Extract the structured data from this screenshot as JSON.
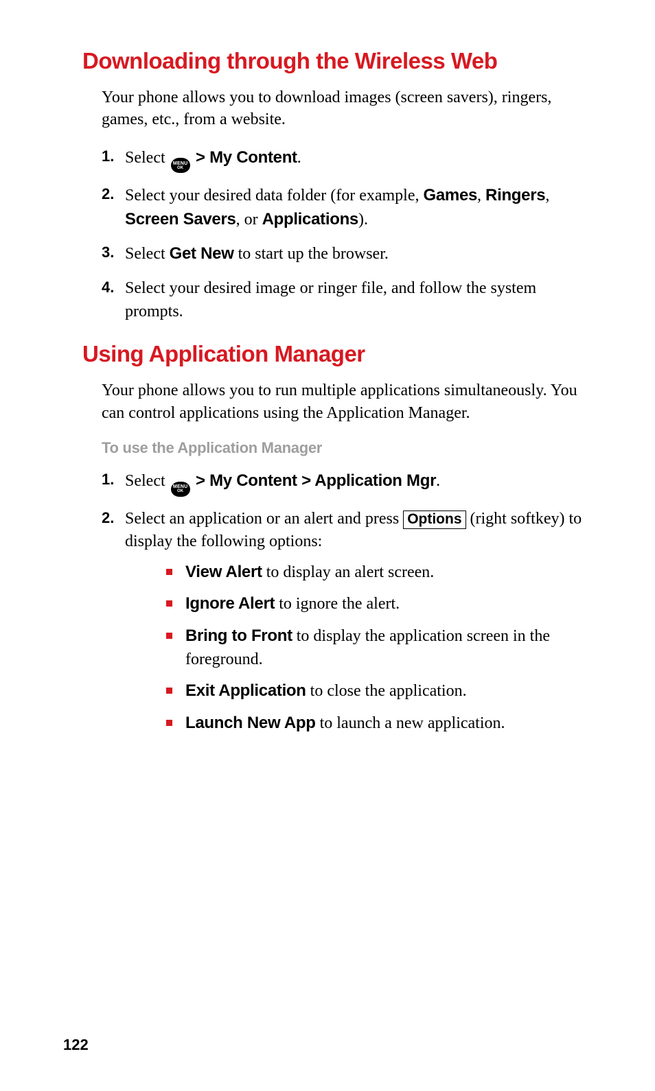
{
  "colors": {
    "heading_red": "#d71921",
    "bullet_red": "#d71921",
    "subheading_gray": "#9e9e9e",
    "text_black": "#000000",
    "background": "#ffffff"
  },
  "typography": {
    "heading_family": "Arial Black / Helvetica condensed heavy",
    "heading_size_pt": 25,
    "body_family": "Georgia / serif",
    "body_size_pt": 18,
    "sans_bold_family": "Arial / Helvetica bold"
  },
  "section1": {
    "heading": "Downloading through the Wireless Web",
    "intro": "Your phone allows you to download images (screen savers), ringers, games, etc., from a website.",
    "steps": [
      {
        "num": "1.",
        "pre": "Select ",
        "icon": "menu-ok-icon",
        "icon_text_top": "MENU",
        "icon_text_bottom": "OK",
        "after_icon": " > ",
        "bold1": "My Content",
        "post": "."
      },
      {
        "num": "2.",
        "pre": "Select your desired data folder (for example, ",
        "bold1": "Games",
        "mid1": ", ",
        "bold2": "Ringers",
        "mid2": ", ",
        "bold3": "Screen Savers",
        "mid3": ", or ",
        "bold4": "Applications",
        "post": ")."
      },
      {
        "num": "3.",
        "pre": "Select ",
        "bold1": "Get New",
        "post": " to start up the browser."
      },
      {
        "num": "4.",
        "pre": "Select your desired image or ringer file, and follow the system prompts."
      }
    ]
  },
  "section2": {
    "heading": "Using Application Manager",
    "intro": "Your phone allows you to run multiple applications simultaneously. You can control applications using the Application Manager.",
    "subheading": "To use the Application Manager",
    "steps": [
      {
        "num": "1.",
        "pre": "Select ",
        "icon": "menu-ok-icon",
        "icon_text_top": "MENU",
        "icon_text_bottom": "OK",
        "after_icon": " > ",
        "bold1": "My Content > Application Mgr",
        "post": "."
      },
      {
        "num": "2.",
        "pre": "Select an application or an alert and press ",
        "boxed": "Options",
        "post": " (right softkey) to display the following options:"
      }
    ],
    "bullets": [
      {
        "bold": "View Alert",
        "rest": " to display an alert screen."
      },
      {
        "bold": "Ignore Alert",
        "rest": " to ignore the alert."
      },
      {
        "bold": "Bring to Front",
        "rest": " to display the application screen in the foreground."
      },
      {
        "bold": "Exit Application",
        "rest": " to close the application."
      },
      {
        "bold": "Launch New App",
        "rest": " to launch a new application."
      }
    ]
  },
  "page_number": "122"
}
